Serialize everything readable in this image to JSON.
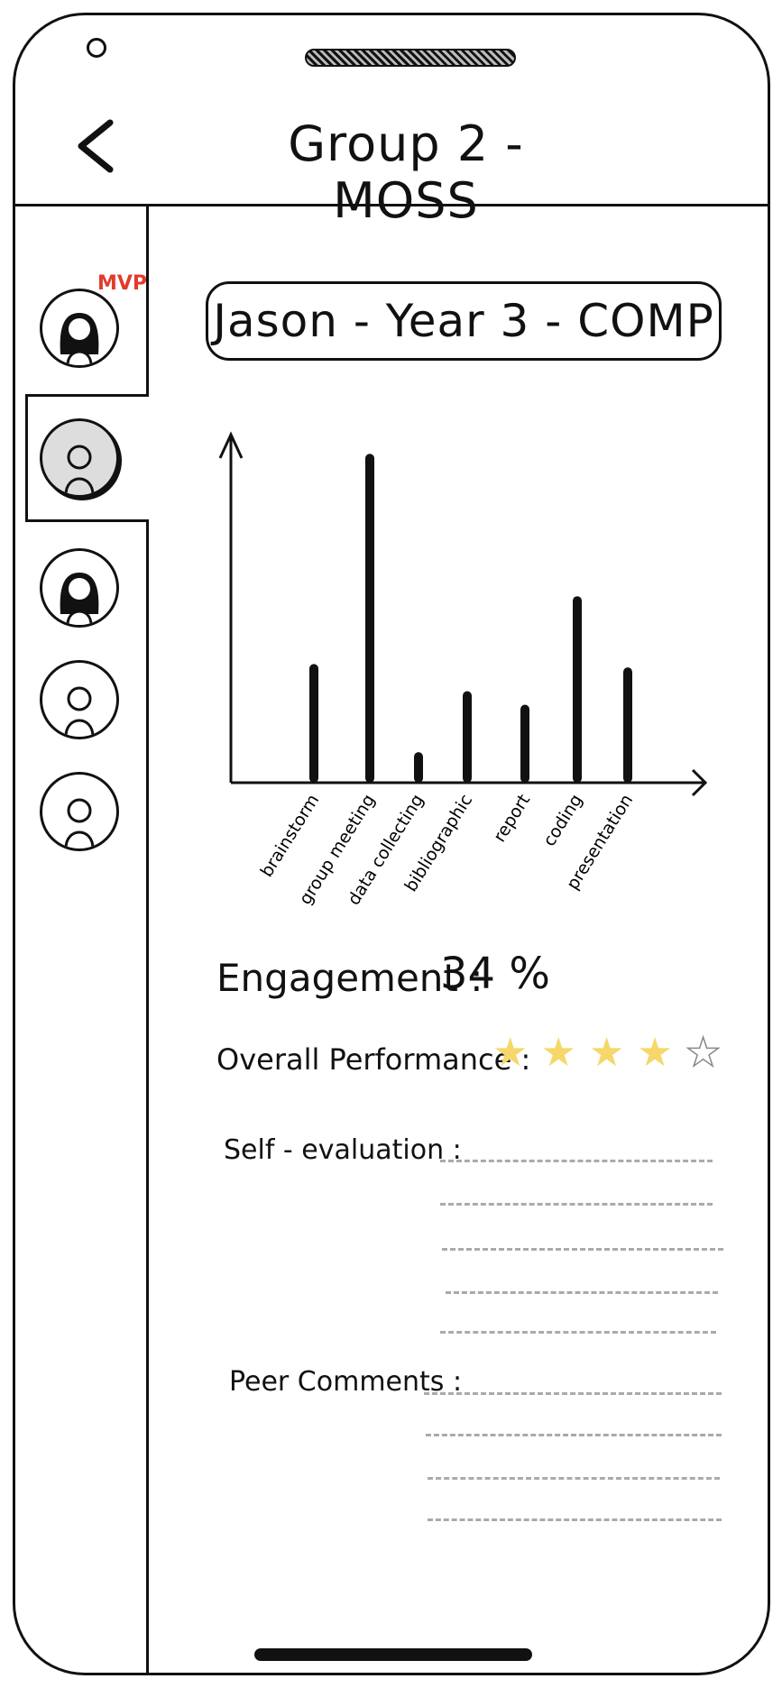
{
  "header": {
    "title": "Group 2 - MOSS",
    "back_icon": "chevron-left-icon"
  },
  "sidebar": {
    "badge": "MVP",
    "members": [
      {
        "avatar": "female",
        "badge": true,
        "selected": false
      },
      {
        "avatar": "male",
        "badge": false,
        "selected": true
      },
      {
        "avatar": "female",
        "badge": false,
        "selected": false
      },
      {
        "avatar": "male",
        "badge": false,
        "selected": false
      },
      {
        "avatar": "male",
        "badge": false,
        "selected": false
      }
    ]
  },
  "profile": {
    "name_line": "Jason - Year 3 - COMP"
  },
  "chart_data": {
    "type": "bar",
    "categories": [
      "brainstorm",
      "group meeting",
      "data collecting",
      "bibliographic",
      "report",
      "coding",
      "presentation"
    ],
    "values": [
      35,
      97,
      9,
      27,
      23,
      55,
      34
    ],
    "ylim": [
      0,
      100
    ],
    "grid": false
  },
  "stats": {
    "engagement_label": "Engagement :",
    "engagement_value": "34 %",
    "performance_label": "Overall Performance :",
    "rating": 4,
    "rating_max": 5,
    "star_color": "#f6d76a"
  },
  "self_evaluation": {
    "label": "Self - evaluation :"
  },
  "peer_comments": {
    "label": "Peer Comments :"
  }
}
